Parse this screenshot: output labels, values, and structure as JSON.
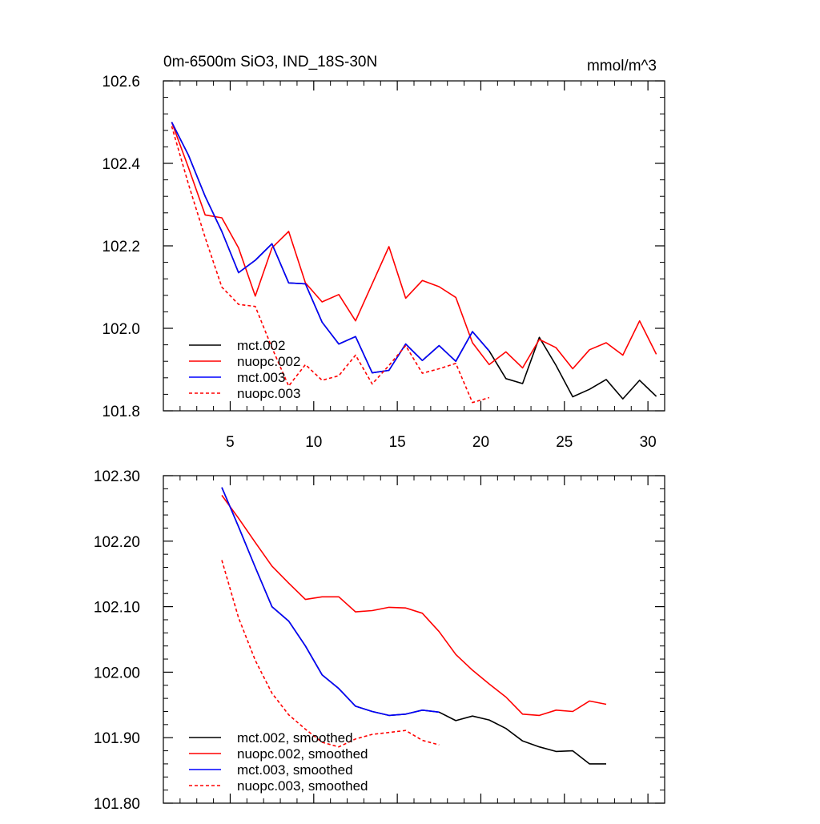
{
  "chart_data": [
    {
      "type": "line",
      "title": "0m-6500m SiO3, IND_18S-30N",
      "units": "mmol/m^3",
      "xlim": [
        1,
        31
      ],
      "ylim": [
        101.8,
        102.6
      ],
      "yticks": [
        101.8,
        102.0,
        102.2,
        102.4,
        102.6
      ],
      "ytick_labels": [
        "101.8",
        "102.0",
        "102.2",
        "102.4",
        "102.6"
      ],
      "xticks": [
        5,
        10,
        15,
        20,
        25,
        30
      ],
      "xtick_labels": [
        "5",
        "10",
        "15",
        "20",
        "25",
        "30"
      ],
      "grid": false,
      "legend_position": "bottom-left",
      "series": [
        {
          "name": "mct.002",
          "color": "#000000",
          "dash": "solid",
          "x": [
            1.5,
            2.5,
            3.5,
            4.5,
            5.5,
            6.5,
            7.5,
            8.5,
            9.5,
            10.5,
            11.5,
            12.5,
            13.5,
            14.5,
            15.5,
            16.5,
            17.5,
            18.5,
            19.5,
            20.5,
            21.5,
            22.5,
            23.5,
            24.5,
            25.5,
            26.5,
            27.5,
            28.5,
            29.5,
            30.5
          ],
          "y": [
            102.5,
            102.42,
            102.32,
            102.235,
            102.135,
            102.165,
            102.205,
            102.11,
            102.108,
            102.015,
            101.962,
            101.98,
            101.892,
            101.898,
            101.962,
            101.922,
            101.958,
            101.92,
            101.992,
            101.945,
            101.878,
            101.866,
            101.978,
            101.91,
            101.834,
            101.852,
            101.876,
            101.829,
            101.874,
            101.835
          ]
        },
        {
          "name": "nuopc.002",
          "color": "#ff0000",
          "dash": "solid",
          "x": [
            1.5,
            2.5,
            3.5,
            4.5,
            5.5,
            6.5,
            7.5,
            8.5,
            9.5,
            10.5,
            11.5,
            12.5,
            13.5,
            14.5,
            15.5,
            16.5,
            17.5,
            18.5,
            19.5,
            20.5,
            21.5,
            22.5,
            23.5,
            24.5,
            25.5,
            26.5,
            27.5,
            28.5,
            29.5,
            30.5
          ],
          "y": [
            102.5,
            102.39,
            102.275,
            102.268,
            102.195,
            102.078,
            102.195,
            102.235,
            102.11,
            102.064,
            102.082,
            102.018,
            102.108,
            102.198,
            102.073,
            102.116,
            102.101,
            102.075,
            101.965,
            101.912,
            101.943,
            101.904,
            101.973,
            101.953,
            101.902,
            101.948,
            101.965,
            101.935,
            102.018,
            101.937
          ]
        },
        {
          "name": "mct.003",
          "color": "#0000ff",
          "dash": "solid",
          "x": [
            1.5,
            2.5,
            3.5,
            4.5,
            5.5,
            6.5,
            7.5,
            8.5,
            9.5,
            10.5,
            11.5,
            12.5,
            13.5,
            14.5,
            15.5,
            16.5,
            17.5,
            18.5,
            19.5,
            20.5
          ],
          "y": [
            102.5,
            102.42,
            102.32,
            102.235,
            102.135,
            102.165,
            102.205,
            102.11,
            102.108,
            102.015,
            101.962,
            101.98,
            101.892,
            101.898,
            101.962,
            101.922,
            101.958,
            101.92,
            101.992,
            101.945
          ]
        },
        {
          "name": "nuopc.003",
          "color": "#ff0000",
          "dash": "dashed",
          "x": [
            1.5,
            2.5,
            3.5,
            4.5,
            5.5,
            6.5,
            7.5,
            8.5,
            9.5,
            10.5,
            11.5,
            12.5,
            13.5,
            14.5,
            15.5,
            16.5,
            17.5,
            18.5,
            19.5,
            20.5
          ],
          "y": [
            102.49,
            102.35,
            102.22,
            102.1,
            102.058,
            102.053,
            101.953,
            101.86,
            101.912,
            101.874,
            101.885,
            101.935,
            101.865,
            101.91,
            101.958,
            101.891,
            101.902,
            101.915,
            101.82,
            101.832
          ]
        }
      ]
    },
    {
      "type": "line",
      "xlim": [
        1,
        31
      ],
      "ylim": [
        101.8,
        102.3
      ],
      "yticks": [
        101.8,
        101.9,
        102.0,
        102.1,
        102.2,
        102.3
      ],
      "ytick_labels": [
        "101.80",
        "101.90",
        "102.00",
        "102.10",
        "102.20",
        "102.30"
      ],
      "xticks": [
        5,
        10,
        15,
        20,
        25,
        30
      ],
      "grid": false,
      "legend_position": "bottom-left",
      "series": [
        {
          "name": "mct.002, smoothed",
          "color": "#000000",
          "dash": "solid",
          "x": [
            4.5,
            5.5,
            6.5,
            7.5,
            8.5,
            9.5,
            10.5,
            11.5,
            12.5,
            13.5,
            14.5,
            15.5,
            16.5,
            17.5,
            18.5,
            19.5,
            20.5,
            21.5,
            22.5,
            23.5,
            24.5,
            25.5,
            26.5,
            27.5
          ],
          "y": [
            102.282,
            102.222,
            102.16,
            102.1,
            102.078,
            102.04,
            101.996,
            101.975,
            101.948,
            101.94,
            101.934,
            101.936,
            101.942,
            101.939,
            101.926,
            101.933,
            101.927,
            101.914,
            101.895,
            101.886,
            101.879,
            101.88,
            101.86,
            101.86
          ]
        },
        {
          "name": "nuopc.002, smoothed",
          "color": "#ff0000",
          "dash": "solid",
          "x": [
            4.5,
            5.5,
            6.5,
            7.5,
            8.5,
            9.5,
            10.5,
            11.5,
            12.5,
            13.5,
            14.5,
            15.5,
            16.5,
            17.5,
            18.5,
            19.5,
            20.5,
            21.5,
            22.5,
            23.5,
            24.5,
            25.5,
            26.5,
            27.5
          ],
          "y": [
            102.27,
            102.235,
            102.198,
            102.162,
            102.136,
            102.111,
            102.115,
            102.115,
            102.092,
            102.094,
            102.099,
            102.098,
            102.09,
            102.062,
            102.027,
            102.003,
            101.982,
            101.962,
            101.936,
            101.934,
            101.942,
            101.94,
            101.956,
            101.951
          ]
        },
        {
          "name": "mct.003, smoothed",
          "color": "#0000ff",
          "dash": "solid",
          "x": [
            4.5,
            5.5,
            6.5,
            7.5,
            8.5,
            9.5,
            10.5,
            11.5,
            12.5,
            13.5,
            14.5,
            15.5,
            16.5,
            17.5
          ],
          "y": [
            102.282,
            102.222,
            102.16,
            102.1,
            102.078,
            102.04,
            101.996,
            101.975,
            101.948,
            101.94,
            101.934,
            101.936,
            101.942,
            101.939
          ]
        },
        {
          "name": "nuopc.003, smoothed",
          "color": "#ff0000",
          "dash": "dashed",
          "x": [
            4.5,
            5.5,
            6.5,
            7.5,
            8.5,
            9.5,
            10.5,
            11.5,
            12.5,
            13.5,
            14.5,
            15.5,
            16.5,
            17.5
          ],
          "y": [
            102.171,
            102.083,
            102.018,
            101.968,
            101.935,
            101.913,
            101.893,
            101.886,
            101.898,
            101.905,
            101.908,
            101.911,
            101.896,
            101.889
          ]
        }
      ]
    }
  ]
}
